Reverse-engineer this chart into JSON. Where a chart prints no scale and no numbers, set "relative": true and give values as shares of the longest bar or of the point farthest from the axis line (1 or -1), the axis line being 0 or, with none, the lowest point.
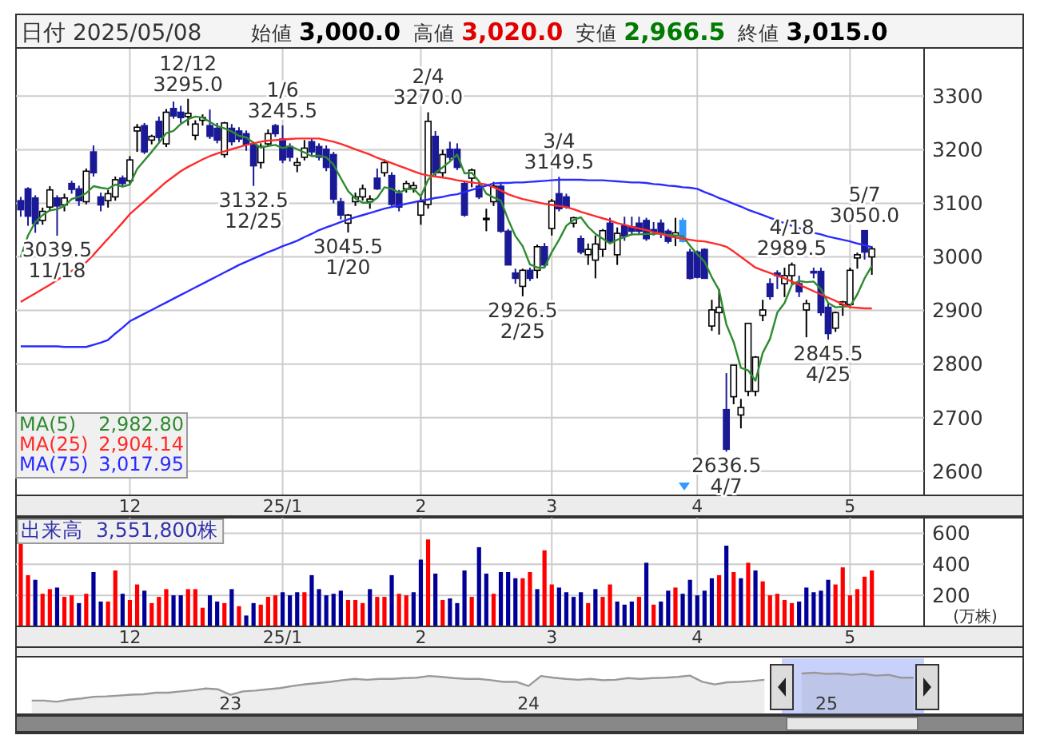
{
  "chart_data": [
    {
      "type": "candlestick",
      "title": "日付 2025/05/08",
      "categories": [
        null,
        null,
        null,
        null,
        null,
        null,
        null,
        null,
        null,
        null,
        null,
        null,
        null,
        null,
        null,
        "12",
        null,
        null,
        null,
        null,
        null,
        null,
        null,
        null,
        null,
        null,
        null,
        null,
        null,
        null,
        null,
        null,
        null,
        null,
        null,
        null,
        "25/1",
        null,
        null,
        null,
        null,
        null,
        null,
        null,
        null,
        null,
        null,
        null,
        null,
        null,
        null,
        null,
        null,
        null,
        null,
        "2",
        null,
        null,
        null,
        null,
        null,
        null,
        null,
        null,
        null,
        null,
        null,
        null,
        null,
        null,
        null,
        null,
        null,
        "3",
        null,
        null,
        null,
        null,
        null,
        null,
        null,
        null,
        null,
        null,
        null,
        null,
        null,
        null,
        null,
        null,
        null,
        null,
        null,
        "4",
        null,
        null,
        null,
        null,
        null,
        null,
        null,
        null,
        null,
        null,
        null,
        null,
        null,
        null,
        null,
        null,
        null,
        null,
        null,
        null,
        "5",
        null,
        null,
        null
      ],
      "ohlc": [
        [
          3105,
          3112,
          3075,
          3088
        ],
        [
          3127,
          3130,
          3058,
          3076
        ],
        [
          3110,
          3115,
          3045,
          3062
        ],
        [
          3068,
          3092,
          3060,
          3085
        ],
        [
          3093,
          3132,
          3085,
          3125
        ],
        [
          3110,
          3115,
          3039.5,
          3095
        ],
        [
          3097,
          3118,
          3085,
          3110
        ],
        [
          3137,
          3142,
          3118,
          3126
        ],
        [
          3127,
          3133,
          3095,
          3105
        ],
        [
          3103,
          3165,
          3098,
          3160
        ],
        [
          3196,
          3208,
          3150,
          3157
        ],
        [
          3112,
          3120,
          3085,
          3097
        ],
        [
          3105,
          3125,
          3092,
          3118
        ],
        [
          3112,
          3150,
          3105,
          3144
        ],
        [
          3147,
          3152,
          3130,
          3137
        ],
        [
          3142,
          3188,
          3135,
          3181
        ],
        [
          3235,
          3248,
          3196,
          3242
        ],
        [
          3245,
          3250,
          3192,
          3196
        ],
        [
          3218,
          3228,
          3210,
          3225
        ],
        [
          3253,
          3262,
          3215,
          3223
        ],
        [
          3211,
          3276,
          3205,
          3270
        ],
        [
          3277,
          3290,
          3258,
          3263
        ],
        [
          3270,
          3282,
          3250,
          3260
        ],
        [
          3262,
          3295,
          3245,
          3268
        ],
        [
          3227,
          3255,
          3218,
          3248
        ],
        [
          3255,
          3266,
          3245,
          3260
        ],
        [
          3245,
          3275,
          3220,
          3225
        ],
        [
          3240,
          3250,
          3212,
          3218
        ],
        [
          3191,
          3252,
          3185,
          3250
        ],
        [
          3240,
          3248,
          3208,
          3215
        ],
        [
          3235,
          3242,
          3214,
          3220
        ],
        [
          3230,
          3236,
          3198,
          3210
        ],
        [
          3210,
          3215,
          3132.5,
          3170
        ],
        [
          3176,
          3212,
          3165,
          3206
        ],
        [
          3211,
          3238,
          3205,
          3230
        ],
        [
          3245,
          3248,
          3224,
          3230
        ],
        [
          3220,
          3245.5,
          3175,
          3181
        ],
        [
          3206,
          3212,
          3178,
          3186
        ],
        [
          3171,
          3185,
          3158,
          3176
        ],
        [
          3186,
          3218,
          3180,
          3203
        ],
        [
          3215,
          3220,
          3190,
          3196
        ],
        [
          3206,
          3212,
          3180,
          3186
        ],
        [
          3201,
          3208,
          3160,
          3167
        ],
        [
          3191,
          3196,
          3100,
          3108
        ],
        [
          3103,
          3110,
          3070,
          3078
        ],
        [
          3063,
          3080,
          3045.5,
          3078
        ],
        [
          3103,
          3120,
          3095,
          3112
        ],
        [
          3112,
          3135,
          3105,
          3127
        ],
        [
          3103,
          3115,
          3090,
          3108
        ],
        [
          3147,
          3165,
          3125,
          3127
        ],
        [
          3157,
          3182,
          3150,
          3176
        ],
        [
          3152,
          3158,
          3095,
          3098
        ],
        [
          3118,
          3125,
          3085,
          3093
        ],
        [
          3127,
          3142,
          3120,
          3137
        ],
        [
          3128,
          3140,
          3120,
          3133
        ],
        [
          3078,
          3112,
          3060,
          3103
        ],
        [
          3098,
          3270,
          3090,
          3253
        ],
        [
          3225,
          3235,
          3150,
          3157
        ],
        [
          3157,
          3200,
          3150,
          3191
        ],
        [
          3201,
          3215,
          3180,
          3186
        ],
        [
          3201,
          3212,
          3162,
          3167
        ],
        [
          3137,
          3142,
          3075,
          3078
        ],
        [
          3147,
          3165,
          3130,
          3162
        ],
        [
          3132,
          3140,
          3108,
          3112
        ],
        [
          3070,
          3090,
          3048,
          3072
        ],
        [
          3103,
          3140,
          3095,
          3132
        ],
        [
          3132,
          3138,
          3045,
          3048
        ],
        [
          3048,
          3052,
          2985,
          2985
        ],
        [
          2970,
          2978,
          2950,
          2960
        ],
        [
          2945,
          2978,
          2926.5,
          2975
        ],
        [
          2975,
          2980,
          2955,
          2960
        ],
        [
          2975,
          3023,
          2960,
          3019
        ],
        [
          3019,
          3026,
          2980,
          2985
        ],
        [
          3053,
          3108,
          3040,
          3104
        ],
        [
          3118,
          3149.5,
          3085,
          3090
        ],
        [
          3112,
          3118,
          3090,
          3093
        ],
        [
          3063,
          3075,
          3055,
          3073
        ],
        [
          3034,
          3040,
          3005,
          3009
        ],
        [
          3004,
          3025,
          2985,
          3014
        ],
        [
          2994,
          3040,
          2960,
          3024
        ],
        [
          3014,
          3052,
          3000,
          3049
        ],
        [
          3063,
          3073,
          3025,
          3029
        ],
        [
          3004,
          3055,
          2985,
          3044
        ],
        [
          3058,
          3075,
          3030,
          3039
        ],
        [
          3056,
          3075,
          3040,
          3048
        ],
        [
          3063,
          3075,
          3042,
          3048
        ],
        [
          3068,
          3073,
          3030,
          3034
        ],
        [
          3051,
          3065,
          3040,
          3048
        ],
        [
          3063,
          3070,
          3035,
          3044
        ],
        [
          3048,
          3052,
          3025,
          3029
        ],
        [
          3039,
          3073,
          3020,
          3045
        ],
        [
          3068,
          3073,
          3027,
          3029
        ],
        [
          3009,
          3015,
          2958,
          2960
        ],
        [
          3009,
          3012,
          2960,
          2962
        ],
        [
          3014,
          3016,
          2960,
          2960
        ],
        [
          2871,
          2920,
          2862,
          2901
        ],
        [
          2896,
          2940,
          2855,
          2906
        ],
        [
          2715,
          2783,
          2636.5,
          2641
        ],
        [
          2739,
          2798,
          2725,
          2798
        ],
        [
          2705,
          2735,
          2680,
          2719
        ],
        [
          2749,
          2876,
          2740,
          2876
        ],
        [
          2749,
          2815,
          2740,
          2813
        ],
        [
          2891,
          2920,
          2880,
          2901
        ],
        [
          2950,
          2960,
          2920,
          2926
        ],
        [
          2970,
          2975,
          2940,
          2965
        ],
        [
          2950,
          2980,
          2925,
          2965
        ],
        [
          2965,
          2989.5,
          2950,
          2985
        ],
        [
          2950,
          2965,
          2925,
          2935
        ],
        [
          2901,
          2920,
          2850,
          2913
        ],
        [
          2973,
          2980,
          2960,
          2970
        ],
        [
          2973,
          2980,
          2890,
          2896
        ],
        [
          2906,
          2915,
          2845.5,
          2857
        ],
        [
          2867,
          2898,
          2860,
          2896
        ],
        [
          2911,
          2918,
          2890,
          2916
        ],
        [
          2911,
          2980,
          2905,
          2975
        ],
        [
          2998,
          3008,
          2978,
          3004
        ],
        [
          3049,
          3050,
          2995,
          3009
        ],
        [
          3000,
          3020,
          2966.5,
          3015
        ]
      ],
      "colors": [
        "#1a1a96",
        "#1a1a96",
        "#1a1a96",
        "#ffffff",
        "#ffffff",
        "#1a1a96",
        "#ffffff",
        "#1a1a96",
        "#1a1a96",
        "#ffffff",
        "#1a1a96",
        "#1a1a96",
        "#ffffff",
        "#ffffff",
        "#1a1a96",
        "#ffffff",
        "#ffffff",
        "#1a1a96",
        "#ffffff",
        "#1a1a96",
        "#ffffff",
        "#1a1a96",
        "#1a1a96",
        "#ffffff",
        "#ffffff",
        "#ffffff",
        "#1a1a96",
        "#1a1a96",
        "#ffffff",
        "#1a1a96",
        "#1a1a96",
        "#1a1a96",
        "#1a1a96",
        "#ffffff",
        "#ffffff",
        "#1a1a96",
        "#1a1a96",
        "#1a1a96",
        "#ffffff",
        "#ffffff",
        "#1a1a96",
        "#1a1a96",
        "#1a1a96",
        "#1a1a96",
        "#1a1a96",
        "#ffffff",
        "#ffffff",
        "#ffffff",
        "#ffffff",
        "#1a1a96",
        "#ffffff",
        "#1a1a96",
        "#1a1a96",
        "#ffffff",
        "#ffffff",
        "#ffffff",
        "#ffffff",
        "#1a1a96",
        "#ffffff",
        "#1a1a96",
        "#1a1a96",
        "#1a1a96",
        "#ffffff",
        "#1a1a96",
        "#ffffff",
        "#ffffff",
        "#1a1a96",
        "#1a1a96",
        "#1a1a96",
        "#ffffff",
        "#1a1a96",
        "#ffffff",
        "#1a1a96",
        "#ffffff",
        "#1a1a96",
        "#1a1a96",
        "#ffffff",
        "#1a1a96",
        "#ffffff",
        "#ffffff",
        "#ffffff",
        "#1a1a96",
        "#ffffff",
        "#1a1a96",
        "#1a1a96",
        "#1a1a96",
        "#1a1a96",
        "#1a1a96",
        "#1a1a96",
        "#1a1a96",
        "#ffffff",
        "#3399ff",
        "#1a1a96",
        "#1a1a96",
        "#1a1a96",
        "#ffffff",
        "#ffffff",
        "#1a1a96",
        "#ffffff",
        "#ffffff",
        "#ffffff",
        "#ffffff",
        "#ffffff",
        "#1a1a96",
        "#1a1a96",
        "#ffffff",
        "#ffffff",
        "#1a1a96",
        "#ffffff",
        "#1a1a96",
        "#1a1a96",
        "#1a1a96",
        "#ffffff",
        "#ffffff",
        "#ffffff",
        "#ffffff",
        "#1a1a96",
        "#ffffff"
      ],
      "series": [
        {
          "type": "line",
          "name": "MA(5)",
          "color": "#2e8b2e",
          "values": [
            3000,
            3040,
            3065,
            3078,
            3087,
            3089,
            3095,
            3108,
            3112,
            3119,
            3132,
            3129,
            3127,
            3135,
            3131,
            3135,
            3164,
            3180,
            3196,
            3213,
            3231,
            3235,
            3248,
            3257,
            3262,
            3260,
            3252,
            3244,
            3240,
            3234,
            3226,
            3223,
            3213,
            3204,
            3207,
            3209,
            3203,
            3207,
            3201,
            3195,
            3188,
            3189,
            3186,
            3172,
            3147,
            3123,
            3109,
            3101,
            3101,
            3110,
            3130,
            3127,
            3120,
            3126,
            3127,
            3113,
            3144,
            3157,
            3167,
            3178,
            3191,
            3156,
            3157,
            3141,
            3118,
            3111,
            3105,
            3070,
            3039,
            3020,
            2986,
            2980,
            2980,
            3009,
            3032,
            3058,
            3069,
            3074,
            3056,
            3043,
            3034,
            3025,
            3032,
            3037,
            3042,
            3042,
            3043,
            3043,
            3044,
            3041,
            3040,
            3039,
            3021,
            3005,
            2991,
            2962,
            2938,
            2874,
            2841,
            2793,
            2788,
            2769,
            2821,
            2847,
            2896,
            2914,
            2948,
            2955,
            2953,
            2954,
            2940,
            2914,
            2906,
            2907,
            2908,
            2930,
            2960,
            2983
          ]
        },
        {
          "type": "line",
          "name": "MA(25)",
          "color": "#ff2a2a",
          "values": [
            2916,
            2924,
            2932,
            2940,
            2948,
            2957,
            2965,
            2974,
            2982,
            2990,
            3004,
            3019,
            3034,
            3049,
            3064,
            3080,
            3092,
            3104,
            3116,
            3128,
            3140,
            3150,
            3160,
            3168,
            3175,
            3182,
            3188,
            3193,
            3197,
            3201,
            3205,
            3209,
            3212,
            3215,
            3217,
            3218,
            3219,
            3220,
            3221,
            3221,
            3221,
            3221,
            3218,
            3215,
            3211,
            3206,
            3201,
            3196,
            3191,
            3185,
            3180,
            3175,
            3170,
            3165,
            3160,
            3155,
            3152,
            3150,
            3148,
            3146,
            3143,
            3141,
            3139,
            3137,
            3135,
            3130,
            3124,
            3117,
            3112,
            3108,
            3105,
            3102,
            3099,
            3097,
            3095,
            3093,
            3089,
            3084,
            3080,
            3076,
            3072,
            3068,
            3063,
            3060,
            3056,
            3053,
            3050,
            3046,
            3043,
            3039,
            3036,
            3034,
            3032,
            3030,
            3029,
            3026,
            3023,
            3019,
            3010,
            3000,
            2990,
            2980,
            2975,
            2970,
            2965,
            2960,
            2954,
            2948,
            2942,
            2936,
            2930,
            2924,
            2918,
            2912,
            2906,
            2905,
            2904,
            2904
          ]
        },
        {
          "type": "line",
          "name": "MA(75)",
          "color": "#2a2aff",
          "values": [
            2833,
            2833,
            2833,
            2833,
            2833,
            2833,
            2832,
            2832,
            2832,
            2832,
            2836,
            2840,
            2845,
            2857,
            2868,
            2880,
            2887,
            2894,
            2901,
            2908,
            2915,
            2922,
            2929,
            2936,
            2943,
            2950,
            2957,
            2964,
            2971,
            2978,
            2985,
            2991,
            2997,
            3003,
            3009,
            3014,
            3020,
            3025,
            3030,
            3037,
            3043,
            3050,
            3055,
            3060,
            3065,
            3070,
            3074,
            3078,
            3082,
            3086,
            3090,
            3093,
            3096,
            3099,
            3102,
            3105,
            3107,
            3110,
            3112,
            3115,
            3117,
            3121,
            3125,
            3129,
            3133,
            3137,
            3138,
            3138,
            3139,
            3139,
            3140,
            3141,
            3142,
            3143,
            3144,
            3144,
            3144,
            3144,
            3143,
            3143,
            3143,
            3142,
            3141,
            3140,
            3139,
            3139,
            3138,
            3136,
            3135,
            3133,
            3132,
            3130,
            3129,
            3127,
            3121,
            3116,
            3110,
            3105,
            3099,
            3094,
            3088,
            3083,
            3078,
            3073,
            3068,
            3063,
            3058,
            3054,
            3049,
            3045,
            3042,
            3038,
            3035,
            3032,
            3029,
            3025,
            3022,
            3018
          ]
        }
      ],
      "ylim": [
        2555,
        3390
      ],
      "yticks": [
        2600,
        2700,
        2800,
        2900,
        3000,
        3100,
        3200,
        3300
      ],
      "grid": true,
      "legend": "bottom left",
      "annotations": [
        "始値 3,000.0",
        "高値 3,020.0",
        "安値 2,966.5",
        "終値 3,015.0",
        "2,982.80",
        "2,904.14",
        "3,017.95",
        {
          "text": "12/12\n3295.0",
          "y": 3295
        },
        {
          "text": "1/6\n3245.5",
          "y": 3245.5
        },
        {
          "text": "2/4\n3270.0",
          "y": 3270
        },
        {
          "text": "3/4\n3149.5",
          "y": 3149.5
        },
        {
          "text": "4/18\n2989.5",
          "y": 2989.5
        },
        {
          "text": "5/7\n3050.0",
          "y": 3050
        },
        {
          "text": "3039.5\n11/18",
          "y": 3039.5
        },
        {
          "text": "3132.5\n12/25",
          "y": 3132.5
        },
        {
          "text": "3045.5\n1/20",
          "y": 3045.5
        },
        {
          "text": "2926.5\n2/25",
          "y": 2926.5
        },
        {
          "text": "2636.5\n4/7",
          "y": 2636.5
        },
        {
          "text": "2845.5\n4/25",
          "y": 2845.5
        }
      ]
    },
    {
      "type": "bar",
      "title": "出来高  3,551,800株",
      "ylabel": "(万株)",
      "categories": [
        null,
        null,
        null,
        null,
        null,
        null,
        null,
        null,
        null,
        null,
        null,
        null,
        null,
        null,
        null,
        "12",
        null,
        null,
        null,
        null,
        null,
        null,
        null,
        null,
        null,
        null,
        null,
        null,
        null,
        null,
        null,
        null,
        null,
        null,
        null,
        null,
        "25/1",
        null,
        null,
        null,
        null,
        null,
        null,
        null,
        null,
        null,
        null,
        null,
        null,
        null,
        null,
        null,
        null,
        null,
        null,
        "2",
        null,
        null,
        null,
        null,
        null,
        null,
        null,
        null,
        null,
        null,
        null,
        null,
        null,
        null,
        null,
        null,
        null,
        "3",
        null,
        null,
        null,
        null,
        null,
        null,
        null,
        null,
        null,
        null,
        null,
        null,
        null,
        null,
        null,
        null,
        null,
        null,
        null,
        "4",
        null,
        null,
        null,
        null,
        null,
        null,
        null,
        null,
        null,
        null,
        null,
        null,
        null,
        null,
        null,
        null,
        null,
        null,
        null,
        null,
        "5",
        null,
        null,
        null
      ],
      "values": [
        530,
        330,
        300,
        210,
        240,
        250,
        190,
        200,
        150,
        210,
        350,
        160,
        160,
        360,
        210,
        170,
        270,
        230,
        150,
        190,
        240,
        200,
        200,
        240,
        240,
        120,
        200,
        160,
        150,
        240,
        130,
        70,
        150,
        140,
        190,
        200,
        220,
        200,
        220,
        220,
        330,
        240,
        200,
        210,
        230,
        170,
        170,
        150,
        240,
        190,
        190,
        330,
        210,
        200,
        220,
        430,
        560,
        340,
        170,
        180,
        150,
        360,
        190,
        510,
        340,
        210,
        350,
        350,
        310,
        310,
        350,
        240,
        490,
        270,
        250,
        220,
        190,
        220,
        150,
        240,
        190,
        270,
        160,
        140,
        160,
        190,
        410,
        140,
        160,
        230,
        250,
        210,
        300,
        200,
        230,
        310,
        330,
        520,
        350,
        310,
        410,
        360,
        290,
        200,
        210,
        170,
        150,
        160,
        250,
        220,
        230,
        300,
        270,
        380,
        200,
        240,
        320,
        360
      ],
      "colors": [
        "#ff0000",
        "#ff0000",
        "#000099",
        "#ff0000",
        "#ff0000",
        "#000099",
        "#ff0000",
        "#ff0000",
        "#000099",
        "#ff0000",
        "#000099",
        "#000099",
        "#ff0000",
        "#ff0000",
        "#000099",
        "#ff0000",
        "#ff0000",
        "#000099",
        "#ff0000",
        "#ff0000",
        "#ff0000",
        "#000099",
        "#000099",
        "#ff0000",
        "#ff0000",
        "#ff0000",
        "#000099",
        "#000099",
        "#ff0000",
        "#000099",
        "#ff0000",
        "#000099",
        "#000099",
        "#ff0000",
        "#ff0000",
        "#ff0000",
        "#000099",
        "#000099",
        "#000099",
        "#ff0000",
        "#000099",
        "#000099",
        "#000099",
        "#000099",
        "#000099",
        "#ff0000",
        "#ff0000",
        "#ff0000",
        "#000099",
        "#ff0000",
        "#ff0000",
        "#000099",
        "#ff0000",
        "#ff0000",
        "#000099",
        "#000099",
        "#ff0000",
        "#000099",
        "#ff0000",
        "#000099",
        "#000099",
        "#000099",
        "#ff0000",
        "#000099",
        "#000099",
        "#ff0000",
        "#000099",
        "#000099",
        "#000099",
        "#ff0000",
        "#ff0000",
        "#000099",
        "#ff0000",
        "#ff0000",
        "#000099",
        "#000099",
        "#000099",
        "#000099",
        "#ff0000",
        "#000099",
        "#ff0000",
        "#ff0000",
        "#000099",
        "#000099",
        "#000099",
        "#ff0000",
        "#000099",
        "#ff0000",
        "#000099",
        "#000099",
        "#ff0000",
        "#000099",
        "#000099",
        "#000099",
        "#000099",
        "#000099",
        "#ff0000",
        "#000099",
        "#ff0000",
        "#000099",
        "#ff0000",
        "#000099",
        "#ff0000",
        "#ff0000",
        "#ff0000",
        "#ff0000",
        "#ff0000",
        "#000099",
        "#000099",
        "#000099",
        "#000099",
        "#000099",
        "#ff0000",
        "#ff0000",
        "#ff0000",
        "#ff0000",
        "#ff0000",
        "#ff0000"
      ],
      "ylim": [
        0,
        700
      ],
      "yticks": [
        200,
        400,
        600
      ],
      "grid": true
    },
    {
      "type": "area",
      "relative": true,
      "color": "#999999",
      "categories": [
        null,
        null,
        null,
        null,
        null,
        null,
        null,
        null,
        null,
        null,
        null,
        null,
        null,
        null,
        null,
        null,
        "23",
        null,
        null,
        null,
        null,
        null,
        null,
        null,
        null,
        null,
        null,
        null,
        null,
        null,
        null,
        null,
        null,
        null,
        null,
        null,
        null,
        null,
        null,
        null,
        "24",
        null,
        null,
        null,
        null,
        null,
        null,
        null,
        null,
        null,
        null,
        null,
        null,
        null,
        null,
        null,
        null,
        null,
        null,
        null,
        null,
        null,
        null,
        null,
        "25",
        null,
        null,
        null,
        null,
        null,
        null,
        null,
        null
      ],
      "values": [
        0.33,
        0.33,
        0.3,
        0.35,
        0.38,
        0.42,
        0.43,
        0.45,
        0.47,
        0.48,
        0.52,
        0.52,
        0.55,
        0.58,
        0.62,
        0.6,
        0.47,
        0.55,
        0.57,
        0.6,
        0.63,
        0.68,
        0.72,
        0.75,
        0.78,
        0.82,
        0.85,
        0.83,
        0.85,
        0.85,
        0.87,
        0.88,
        0.92,
        0.9,
        0.87,
        0.85,
        0.85,
        0.82,
        0.78,
        0.78,
        0.68,
        0.92,
        0.88,
        0.85,
        0.83,
        0.85,
        0.82,
        0.83,
        0.87,
        0.85,
        0.87,
        0.88,
        0.9,
        0.93,
        0.78,
        0.72,
        0.77,
        0.78,
        0.8,
        0.83,
        null,
        null,
        0.98,
        1,
        0.97,
        0.98,
        0.95,
        0.97,
        0.93,
        0.95,
        0.88,
        0.88,
        null
      ]
    }
  ]
}
